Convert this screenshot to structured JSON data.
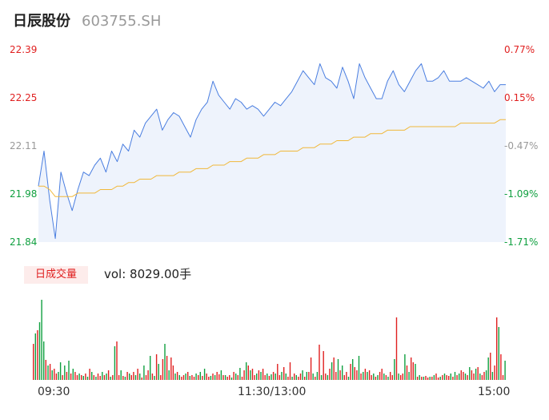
{
  "header": {
    "name": "日辰股份",
    "code": "603755.SH"
  },
  "price_axis": {
    "left_labels": [
      "22.39",
      "22.25",
      "22.11",
      "21.98",
      "21.84"
    ],
    "right_labels": [
      "0.77%",
      "0.15%",
      "-0.47%",
      "-1.09%",
      "-1.71%"
    ]
  },
  "volume": {
    "badge": "日成交量",
    "text": "vol: 8029.00手"
  },
  "time_axis": {
    "start": "09:30",
    "mid": "11:30/13:00",
    "end": "15:00"
  },
  "colors": {
    "price_line": "#4a7ee0",
    "avg_line": "#f0b83a",
    "area_fill": "#eef3fc",
    "up": "#e02020",
    "down": "#10a040"
  },
  "chart_data": [
    {
      "type": "line",
      "x_range": [
        "09:30",
        "15:00"
      ],
      "ylim": [
        21.84,
        22.39
      ],
      "series": [
        {
          "values": [
            22.0,
            22.1,
            21.96,
            21.85,
            22.04,
            21.98,
            21.93,
            21.99,
            22.04,
            22.03,
            22.06,
            22.08,
            22.04,
            22.1,
            22.07,
            22.12,
            22.1,
            22.16,
            22.14,
            22.18,
            22.2,
            22.22,
            22.16,
            22.19,
            22.21,
            22.2,
            22.17,
            22.14,
            22.19,
            22.22,
            22.24,
            22.3,
            22.26,
            22.24,
            22.22,
            22.25,
            22.24,
            22.22,
            22.23,
            22.22,
            22.2,
            22.22,
            22.24,
            22.23,
            22.25,
            22.27,
            22.3,
            22.33,
            22.31,
            22.29,
            22.35,
            22.31,
            22.3,
            22.28,
            22.34,
            22.3,
            22.25,
            22.35,
            22.31,
            22.28,
            22.25,
            22.25,
            22.3,
            22.33,
            22.29,
            22.27,
            22.3,
            22.33,
            22.35,
            22.3,
            22.3,
            22.31,
            22.33,
            22.3,
            22.3,
            22.3,
            22.31,
            22.3,
            22.29,
            22.28,
            22.3,
            22.27,
            22.29,
            22.29
          ]
        },
        {
          "values": [
            22.0,
            22.0,
            21.99,
            21.97,
            21.97,
            21.97,
            21.97,
            21.98,
            21.98,
            21.98,
            21.98,
            21.99,
            21.99,
            21.99,
            22.0,
            22.0,
            22.01,
            22.01,
            22.02,
            22.02,
            22.02,
            22.03,
            22.03,
            22.03,
            22.03,
            22.04,
            22.04,
            22.04,
            22.05,
            22.05,
            22.05,
            22.06,
            22.06,
            22.06,
            22.07,
            22.07,
            22.07,
            22.08,
            22.08,
            22.08,
            22.09,
            22.09,
            22.09,
            22.1,
            22.1,
            22.1,
            22.1,
            22.11,
            22.11,
            22.11,
            22.12,
            22.12,
            22.12,
            22.13,
            22.13,
            22.13,
            22.14,
            22.14,
            22.14,
            22.15,
            22.15,
            22.15,
            22.16,
            22.16,
            22.16,
            22.16,
            22.17,
            22.17,
            22.17,
            22.17,
            22.17,
            22.17,
            22.17,
            22.17,
            22.17,
            22.18,
            22.18,
            22.18,
            22.18,
            22.18,
            22.18,
            22.18,
            22.19,
            22.19
          ]
        }
      ]
    },
    {
      "type": "bar",
      "x_range": [
        "09:30",
        "15:00"
      ],
      "ylim": [
        0,
        100
      ],
      "values": [
        45,
        58,
        62,
        72,
        100,
        48,
        25,
        18,
        20,
        12,
        14,
        8,
        10,
        22,
        6,
        18,
        10,
        24,
        8,
        14,
        10,
        6,
        8,
        6,
        5,
        8,
        4,
        14,
        10,
        6,
        4,
        8,
        5,
        10,
        6,
        8,
        12,
        4,
        6,
        42,
        48,
        6,
        12,
        5,
        4,
        10,
        8,
        6,
        10,
        6,
        14,
        8,
        3,
        18,
        6,
        12,
        30,
        8,
        5,
        32,
        20,
        6,
        26,
        45,
        30,
        12,
        28,
        18,
        8,
        10,
        6,
        4,
        6,
        8,
        10,
        5,
        6,
        4,
        8,
        6,
        10,
        5,
        14,
        8,
        4,
        5,
        8,
        6,
        10,
        7,
        12,
        6,
        6,
        4,
        6,
        3,
        10,
        8,
        6,
        15,
        4,
        12,
        22,
        18,
        12,
        14,
        6,
        8,
        12,
        10,
        14,
        6,
        8,
        5,
        7,
        10,
        8,
        20,
        6,
        10,
        16,
        8,
        4,
        22,
        4,
        8,
        6,
        4,
        8,
        12,
        4,
        10,
        10,
        28,
        8,
        4,
        10,
        44,
        6,
        36,
        8,
        6,
        14,
        22,
        28,
        10,
        26,
        12,
        18,
        6,
        10,
        4,
        20,
        26,
        16,
        12,
        30,
        8,
        10,
        14,
        10,
        12,
        6,
        8,
        4,
        6,
        10,
        14,
        8,
        6,
        4,
        10,
        6,
        26,
        78,
        8,
        6,
        8,
        32,
        18,
        10,
        28,
        22,
        20,
        4,
        6,
        4,
        4,
        5,
        3,
        4,
        4,
        6,
        8,
        3,
        4,
        6,
        8,
        6,
        5,
        8,
        4,
        10,
        6,
        8,
        12,
        10,
        8,
        6,
        16,
        12,
        8,
        14,
        16,
        8,
        6,
        10,
        12,
        28,
        34,
        10,
        18,
        78,
        66,
        32,
        6,
        24
      ],
      "up": [
        1,
        0,
        1,
        0,
        0,
        0,
        1,
        0,
        1,
        0,
        1,
        1,
        0,
        0,
        1,
        0,
        1,
        0,
        1,
        0,
        1,
        1,
        0,
        1,
        0,
        1,
        0,
        1,
        0,
        1,
        0,
        1,
        1,
        0,
        1,
        0,
        1,
        0,
        1,
        0,
        1,
        1,
        0,
        1,
        0,
        1,
        0,
        1,
        1,
        0,
        1,
        0,
        1,
        0,
        1,
        1,
        0,
        1,
        0,
        1,
        0,
        1,
        1,
        0,
        1,
        0,
        1,
        1,
        0,
        1,
        0,
        1,
        1,
        0,
        1,
        0,
        1,
        1,
        0,
        1,
        0,
        1,
        0,
        1,
        1,
        0,
        1,
        0,
        1,
        1,
        0,
        1,
        0,
        1,
        1,
        0,
        1,
        0,
        1,
        0,
        1,
        1,
        0,
        1,
        0,
        1,
        1,
        0,
        1,
        0,
        1,
        1,
        0,
        1,
        0,
        1,
        0,
        1,
        1,
        0,
        1,
        0,
        1,
        1,
        0,
        1,
        0,
        1,
        1,
        0,
        1,
        0,
        1,
        1,
        0,
        1,
        0,
        1,
        0,
        1,
        1,
        0,
        1,
        0,
        1,
        1,
        0,
        1,
        0,
        1,
        1,
        0,
        1,
        0,
        1,
        1,
        0,
        1,
        0,
        1,
        0,
        1,
        1,
        0,
        1,
        0,
        1,
        1,
        0,
        1,
        0,
        1,
        1,
        0,
        1,
        0,
        1,
        1,
        0,
        1,
        0,
        1,
        1,
        0,
        1,
        0,
        1,
        0,
        1,
        1,
        0,
        1,
        0,
        1,
        1,
        0,
        1,
        0,
        1,
        1,
        0,
        1,
        0,
        1,
        0,
        1,
        1,
        0,
        1,
        0,
        1,
        1,
        0,
        1,
        0,
        1,
        1,
        0,
        0,
        1,
        0,
        1,
        1,
        0,
        1,
        1,
        0,
        1
      ]
    }
  ]
}
